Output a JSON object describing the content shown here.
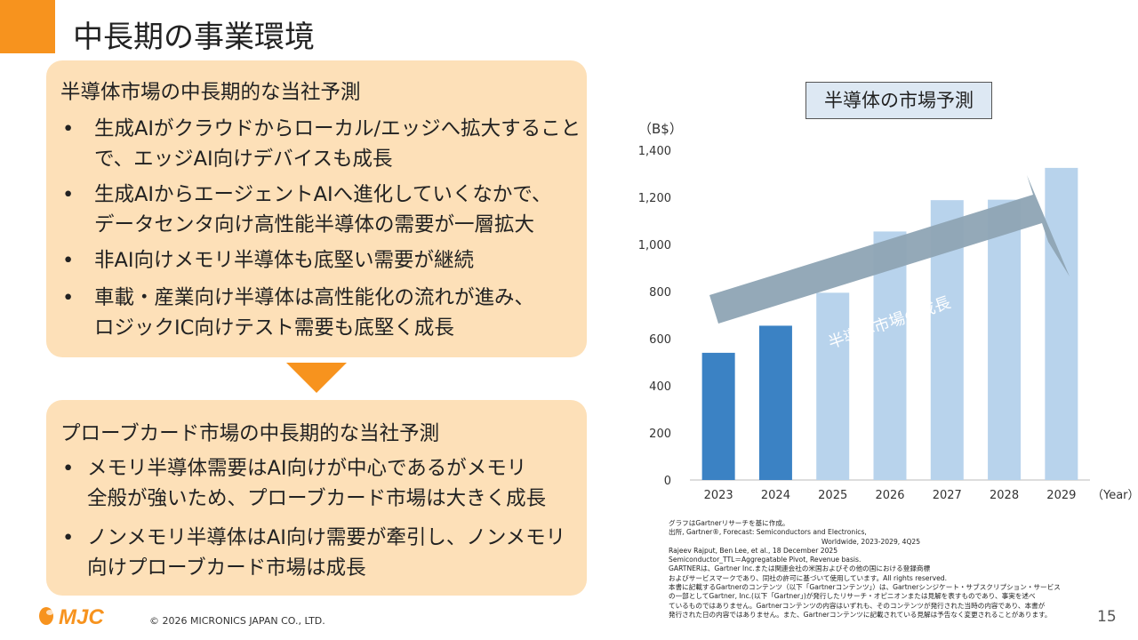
{
  "page": {
    "title": "中長期の事業環境",
    "page_number": "15",
    "copyright": "© 2026 MICRONICS JAPAN CO., LTD.",
    "logo_text": "MJC"
  },
  "semiconductor_box": {
    "heading": "半導体市場の中長期的な当社予測",
    "bullets": [
      [
        "生成AIがクラウドからローカル/エッジへ拡大すること",
        "で、エッジAI向けデバイスも成長"
      ],
      [
        "生成AIからエージェントAIへ進化していくなかで、",
        "データセンタ向け高性能半導体の需要が一層拡大"
      ],
      [
        "非AI向けメモリ半導体も底堅い需要が継続"
      ],
      [
        "車載・産業向け半導体は高性能化の流れが進み、",
        "ロジックIC向けテスト需要も底堅く成長"
      ]
    ]
  },
  "probe_box": {
    "heading": "プローブカード市場の中長期的な当社予測",
    "bullets": [
      [
        "メモリ半導体需要はAI向けが中心であるがメモリ",
        "全般が強いため、プローブカード市場は大きく成長"
      ],
      [
        "ノンメモリ半導体はAI向け需要が牽引し、ノンメモリ",
        "向けプローブカード市場は成長"
      ]
    ]
  },
  "chart_data": {
    "type": "bar",
    "title": "半導体の市場予測",
    "ylabel": "（B$）",
    "xlabel": "（Year）",
    "categories": [
      "2023",
      "2024",
      "2025",
      "2026",
      "2027",
      "2028",
      "2029"
    ],
    "values": [
      540,
      655,
      795,
      1055,
      1188,
      1190,
      1325
    ],
    "bar_colors": [
      "#3b82c4",
      "#3b82c4",
      "#b8d3ec",
      "#b8d3ec",
      "#b8d3ec",
      "#b8d3ec",
      "#b8d3ec"
    ],
    "ylim": [
      0,
      1400
    ],
    "yticks": [
      0,
      200,
      400,
      600,
      800,
      1000,
      1200,
      1400
    ],
    "ytick_labels": [
      "0",
      "200",
      "400",
      "600",
      "800",
      "1,000",
      "1,200",
      "1,400"
    ],
    "annotation": "半導体市場の成長",
    "grid": false
  },
  "footnote": {
    "lines": [
      "グラフはGartnerリサーチを基に作成。",
      "出所, Gartner®, Forecast: Semiconductors and Electronics,",
      "Worldwide, 2023-2029, 4Q25",
      "Rajeev Rajput, Ben Lee, et al., 18 December 2025",
      "Semiconductor_TTL＝Aggregatable Pivot, Revenue basis.",
      "GARTNERは、Gartner Inc.または関連会社の米国およびその他の国における登録商標",
      "およびサービスマークであり、同社の許可に基づいて使用しています。All rights reserved.",
      "本書に記載するGartnerのコンテンツ（以下「Gartnerコンテンツ」）は、Gartnerシンジケート・サブスクリプション・サービス",
      "の一部としてGartner, Inc.(以下「Gartner」)が発行したリサーチ・オピニオンまたは見解を表すものであり、事実を述べ",
      "ているものではありません。Gartnerコンテンツの内容はいずれも、そのコンテンツが発行された当時の内容であり、本書が",
      "発行された日の内容ではありません。また、Gartnerコンテンツに記載されている見解は予告なく変更されることがあります。"
    ]
  },
  "colors": {
    "accent": "#f7931e",
    "box_fill": "#fde0b8",
    "bar_actual": "#3b82c4",
    "bar_forecast": "#b8d3ec",
    "growth_arrow": "#8ea4b4"
  }
}
